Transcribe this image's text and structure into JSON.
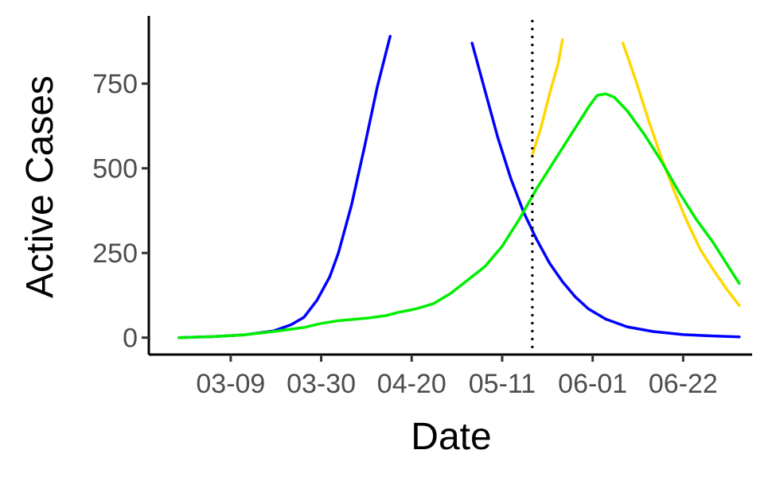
{
  "chart_data": {
    "type": "line",
    "xlabel": "Date",
    "ylabel": "Active Cases",
    "x_tick_labels": [
      {
        "date": "2020-03-09",
        "label": "03-09"
      },
      {
        "date": "2020-03-30",
        "label": "03-30"
      },
      {
        "date": "2020-04-20",
        "label": "04-20"
      },
      {
        "date": "2020-05-11",
        "label": "05-11"
      },
      {
        "date": "2020-06-01",
        "label": "06-01"
      },
      {
        "date": "2020-06-22",
        "label": "06-22"
      }
    ],
    "y_ticks": [
      0,
      250,
      500,
      750
    ],
    "xlim": [
      "2020-02-19",
      "2020-07-08"
    ],
    "ylim": [
      -50,
      950
    ],
    "grid": false,
    "legend": "none",
    "vline": {
      "date": "2020-05-18",
      "style": "dotted",
      "color": "#000000"
    },
    "series": [
      {
        "color": "#0000ff",
        "segments": [
          [
            [
              "2020-02-26",
              0
            ],
            [
              "2020-03-05",
              3
            ],
            [
              "2020-03-12",
              8
            ],
            [
              "2020-03-19",
              20
            ],
            [
              "2020-03-23",
              38
            ],
            [
              "2020-03-26",
              60
            ],
            [
              "2020-03-29",
              110
            ],
            [
              "2020-04-01",
              180
            ],
            [
              "2020-04-03",
              250
            ],
            [
              "2020-04-06",
              390
            ],
            [
              "2020-04-09",
              560
            ],
            [
              "2020-04-12",
              740
            ],
            [
              "2020-04-15",
              890
            ]
          ],
          [
            [
              "2020-05-04",
              870
            ],
            [
              "2020-05-07",
              730
            ],
            [
              "2020-05-10",
              590
            ],
            [
              "2020-05-13",
              470
            ],
            [
              "2020-05-16",
              370
            ],
            [
              "2020-05-19",
              290
            ],
            [
              "2020-05-22",
              220
            ],
            [
              "2020-05-25",
              165
            ],
            [
              "2020-05-28",
              120
            ],
            [
              "2020-05-31",
              85
            ],
            [
              "2020-06-04",
              55
            ],
            [
              "2020-06-09",
              32
            ],
            [
              "2020-06-15",
              18
            ],
            [
              "2020-06-22",
              9
            ],
            [
              "2020-06-29",
              5
            ],
            [
              "2020-07-05",
              2
            ]
          ]
        ]
      },
      {
        "color": "#ffd700",
        "segments": [
          [
            [
              "2020-05-18",
              540
            ],
            [
              "2020-05-20",
              620
            ],
            [
              "2020-05-22",
              720
            ],
            [
              "2020-05-24",
              810
            ],
            [
              "2020-05-25",
              880
            ]
          ],
          [
            [
              "2020-06-08",
              870
            ],
            [
              "2020-06-11",
              760
            ],
            [
              "2020-06-14",
              640
            ],
            [
              "2020-06-17",
              530
            ],
            [
              "2020-06-20",
              430
            ],
            [
              "2020-06-23",
              340
            ],
            [
              "2020-06-26",
              260
            ],
            [
              "2020-06-29",
              200
            ],
            [
              "2020-07-02",
              145
            ],
            [
              "2020-07-05",
              95
            ]
          ]
        ]
      },
      {
        "color": "#00ee00",
        "segments": [
          [
            [
              "2020-02-26",
              0
            ],
            [
              "2020-03-05",
              3
            ],
            [
              "2020-03-12",
              8
            ],
            [
              "2020-03-19",
              18
            ],
            [
              "2020-03-26",
              30
            ],
            [
              "2020-03-30",
              42
            ],
            [
              "2020-04-03",
              50
            ],
            [
              "2020-04-10",
              58
            ],
            [
              "2020-04-14",
              65
            ],
            [
              "2020-04-17",
              75
            ],
            [
              "2020-04-21",
              85
            ],
            [
              "2020-04-25",
              100
            ],
            [
              "2020-04-29",
              130
            ],
            [
              "2020-05-03",
              170
            ],
            [
              "2020-05-07",
              210
            ],
            [
              "2020-05-11",
              270
            ],
            [
              "2020-05-15",
              350
            ],
            [
              "2020-05-19",
              440
            ],
            [
              "2020-05-23",
              520
            ],
            [
              "2020-05-27",
              600
            ],
            [
              "2020-05-31",
              680
            ],
            [
              "2020-06-02",
              715
            ],
            [
              "2020-06-04",
              720
            ],
            [
              "2020-06-06",
              710
            ],
            [
              "2020-06-09",
              670
            ],
            [
              "2020-06-13",
              600
            ],
            [
              "2020-06-17",
              520
            ],
            [
              "2020-06-21",
              430
            ],
            [
              "2020-06-25",
              350
            ],
            [
              "2020-06-29",
              280
            ],
            [
              "2020-07-02",
              220
            ],
            [
              "2020-07-05",
              160
            ]
          ]
        ]
      }
    ]
  }
}
